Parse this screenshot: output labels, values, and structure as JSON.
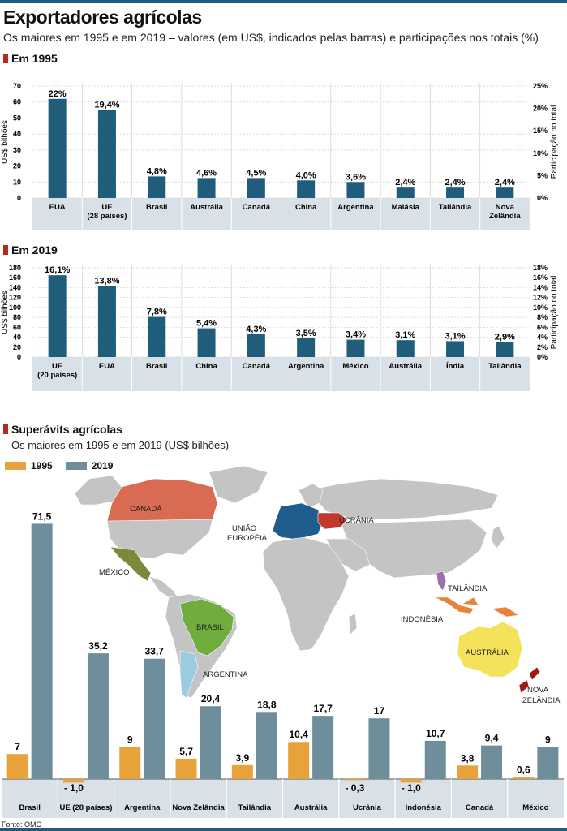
{
  "title": "Exportadores agrícolas",
  "subtitle": "Os maiores em 1995 e em 2019 – valores (em US$, indicados pelas barras) e participações nos totais (%)",
  "source": "Fonte: OMC",
  "colors": {
    "bar": "#1f5d7a",
    "band": "#d9e1e8",
    "grid": "#cfcfcf",
    "c1995": "#e8a23a",
    "c2019": "#6f8e9b",
    "accent": "#b52a1c"
  },
  "chart_data": [
    {
      "type": "bar",
      "title": "Em 1995",
      "ylabel": "US$ bilhões",
      "y2label": "Participação no total",
      "ylim": [
        0,
        70
      ],
      "yticks": [
        0,
        10,
        20,
        30,
        40,
        50,
        60,
        70
      ],
      "y2ticks": [
        "0%",
        "5%",
        "10%",
        "15%",
        "20%",
        "25%"
      ],
      "categories": [
        [
          "EUA"
        ],
        [
          "UE",
          "(28 países)"
        ],
        [
          "Brasil"
        ],
        [
          "Austrália"
        ],
        [
          "Canadá"
        ],
        [
          "China"
        ],
        [
          "Argentina"
        ],
        [
          "Malásia"
        ],
        [
          "Tailândia"
        ],
        [
          "Nova",
          "Zelândia"
        ]
      ],
      "values": [
        62,
        55,
        13.5,
        12.5,
        12.5,
        11,
        10,
        6.5,
        6.5,
        6.5
      ],
      "labels": [
        "22%",
        "19,4%",
        "4,8%",
        "4,6%",
        "4,5%",
        "4,0%",
        "3,6%",
        "2,4%",
        "2,4%",
        "2,4%"
      ]
    },
    {
      "type": "bar",
      "title": "Em 2019",
      "ylabel": "US$ bilhões",
      "y2label": "Participação no total",
      "ylim": [
        0,
        180
      ],
      "yticks": [
        0,
        20,
        40,
        60,
        80,
        100,
        120,
        140,
        160,
        180
      ],
      "y2ticks": [
        "0%",
        "2%",
        "4%",
        "6%",
        "8%",
        "10%",
        "12%",
        "14%",
        "16%",
        "18%"
      ],
      "categories": [
        [
          "UE",
          "(20 países)"
        ],
        [
          "EUA"
        ],
        [
          "Brasil"
        ],
        [
          "China"
        ],
        [
          "Canadá"
        ],
        [
          "Argentina"
        ],
        [
          "México"
        ],
        [
          "Austrália"
        ],
        [
          "Índia"
        ],
        [
          "Tailândia"
        ]
      ],
      "values": [
        165,
        143,
        81,
        58,
        46,
        38,
        35,
        34,
        32,
        30
      ],
      "labels": [
        "16,1%",
        "13,8%",
        "7,8%",
        "5,4%",
        "4,3%",
        "3,5%",
        "3,4%",
        "3,1%",
        "3,1%",
        "2,9%"
      ]
    },
    {
      "type": "bar",
      "title": "Superávits agrícolas",
      "subtitle": "Os maiores em 1995 e em 2019 (US$ bilhões)",
      "categories": [
        "Brasil",
        "UE (28 países)",
        "Argentina",
        "Nova Zelândia",
        "Tailândia",
        "Austrália",
        "Ucrânia",
        "Indonésia",
        "Canadá",
        "México"
      ],
      "series": [
        {
          "name": "1995",
          "values": [
            7,
            -1.0,
            9,
            5.7,
            3.9,
            10.4,
            -0.3,
            -1.0,
            3.8,
            0.6
          ],
          "labels": [
            "7",
            "- 1,0",
            "9",
            "5,7",
            "3,9",
            "10,4",
            "- 0,3",
            "- 1,0",
            "3,8",
            "0,6"
          ]
        },
        {
          "name": "2019",
          "values": [
            71.5,
            35.2,
            33.7,
            20.4,
            18.8,
            17.7,
            17,
            10.7,
            9.4,
            9
          ],
          "labels": [
            "71,5",
            "35,2",
            "33,7",
            "20,4",
            "18,8",
            "17,7",
            "17",
            "10,7",
            "9,4",
            "9"
          ]
        }
      ]
    }
  ],
  "map": {
    "labels": [
      "CANADÁ",
      "UNIÃO",
      "EUROPÉIA",
      "UCRÂNIA",
      "MÉXICO",
      "BRASIL",
      "ARGENTINA",
      "TAILÂNDIA",
      "INDONÉSIA",
      "AUSTRÁLIA",
      "NOVA",
      "ZELÂNDIA"
    ],
    "colors": {
      "land": "#c4c4c4",
      "canada": "#d96b52",
      "eu": "#1f5d8f",
      "ukraine": "#c0392b",
      "mexico": "#7a8a3a",
      "brazil": "#6fae3e",
      "argentina": "#9ccbe0",
      "thailand": "#9b6fa8",
      "indonesia": "#e7833a",
      "australia": "#f3e25a",
      "newzealand": "#a11a1a"
    }
  }
}
